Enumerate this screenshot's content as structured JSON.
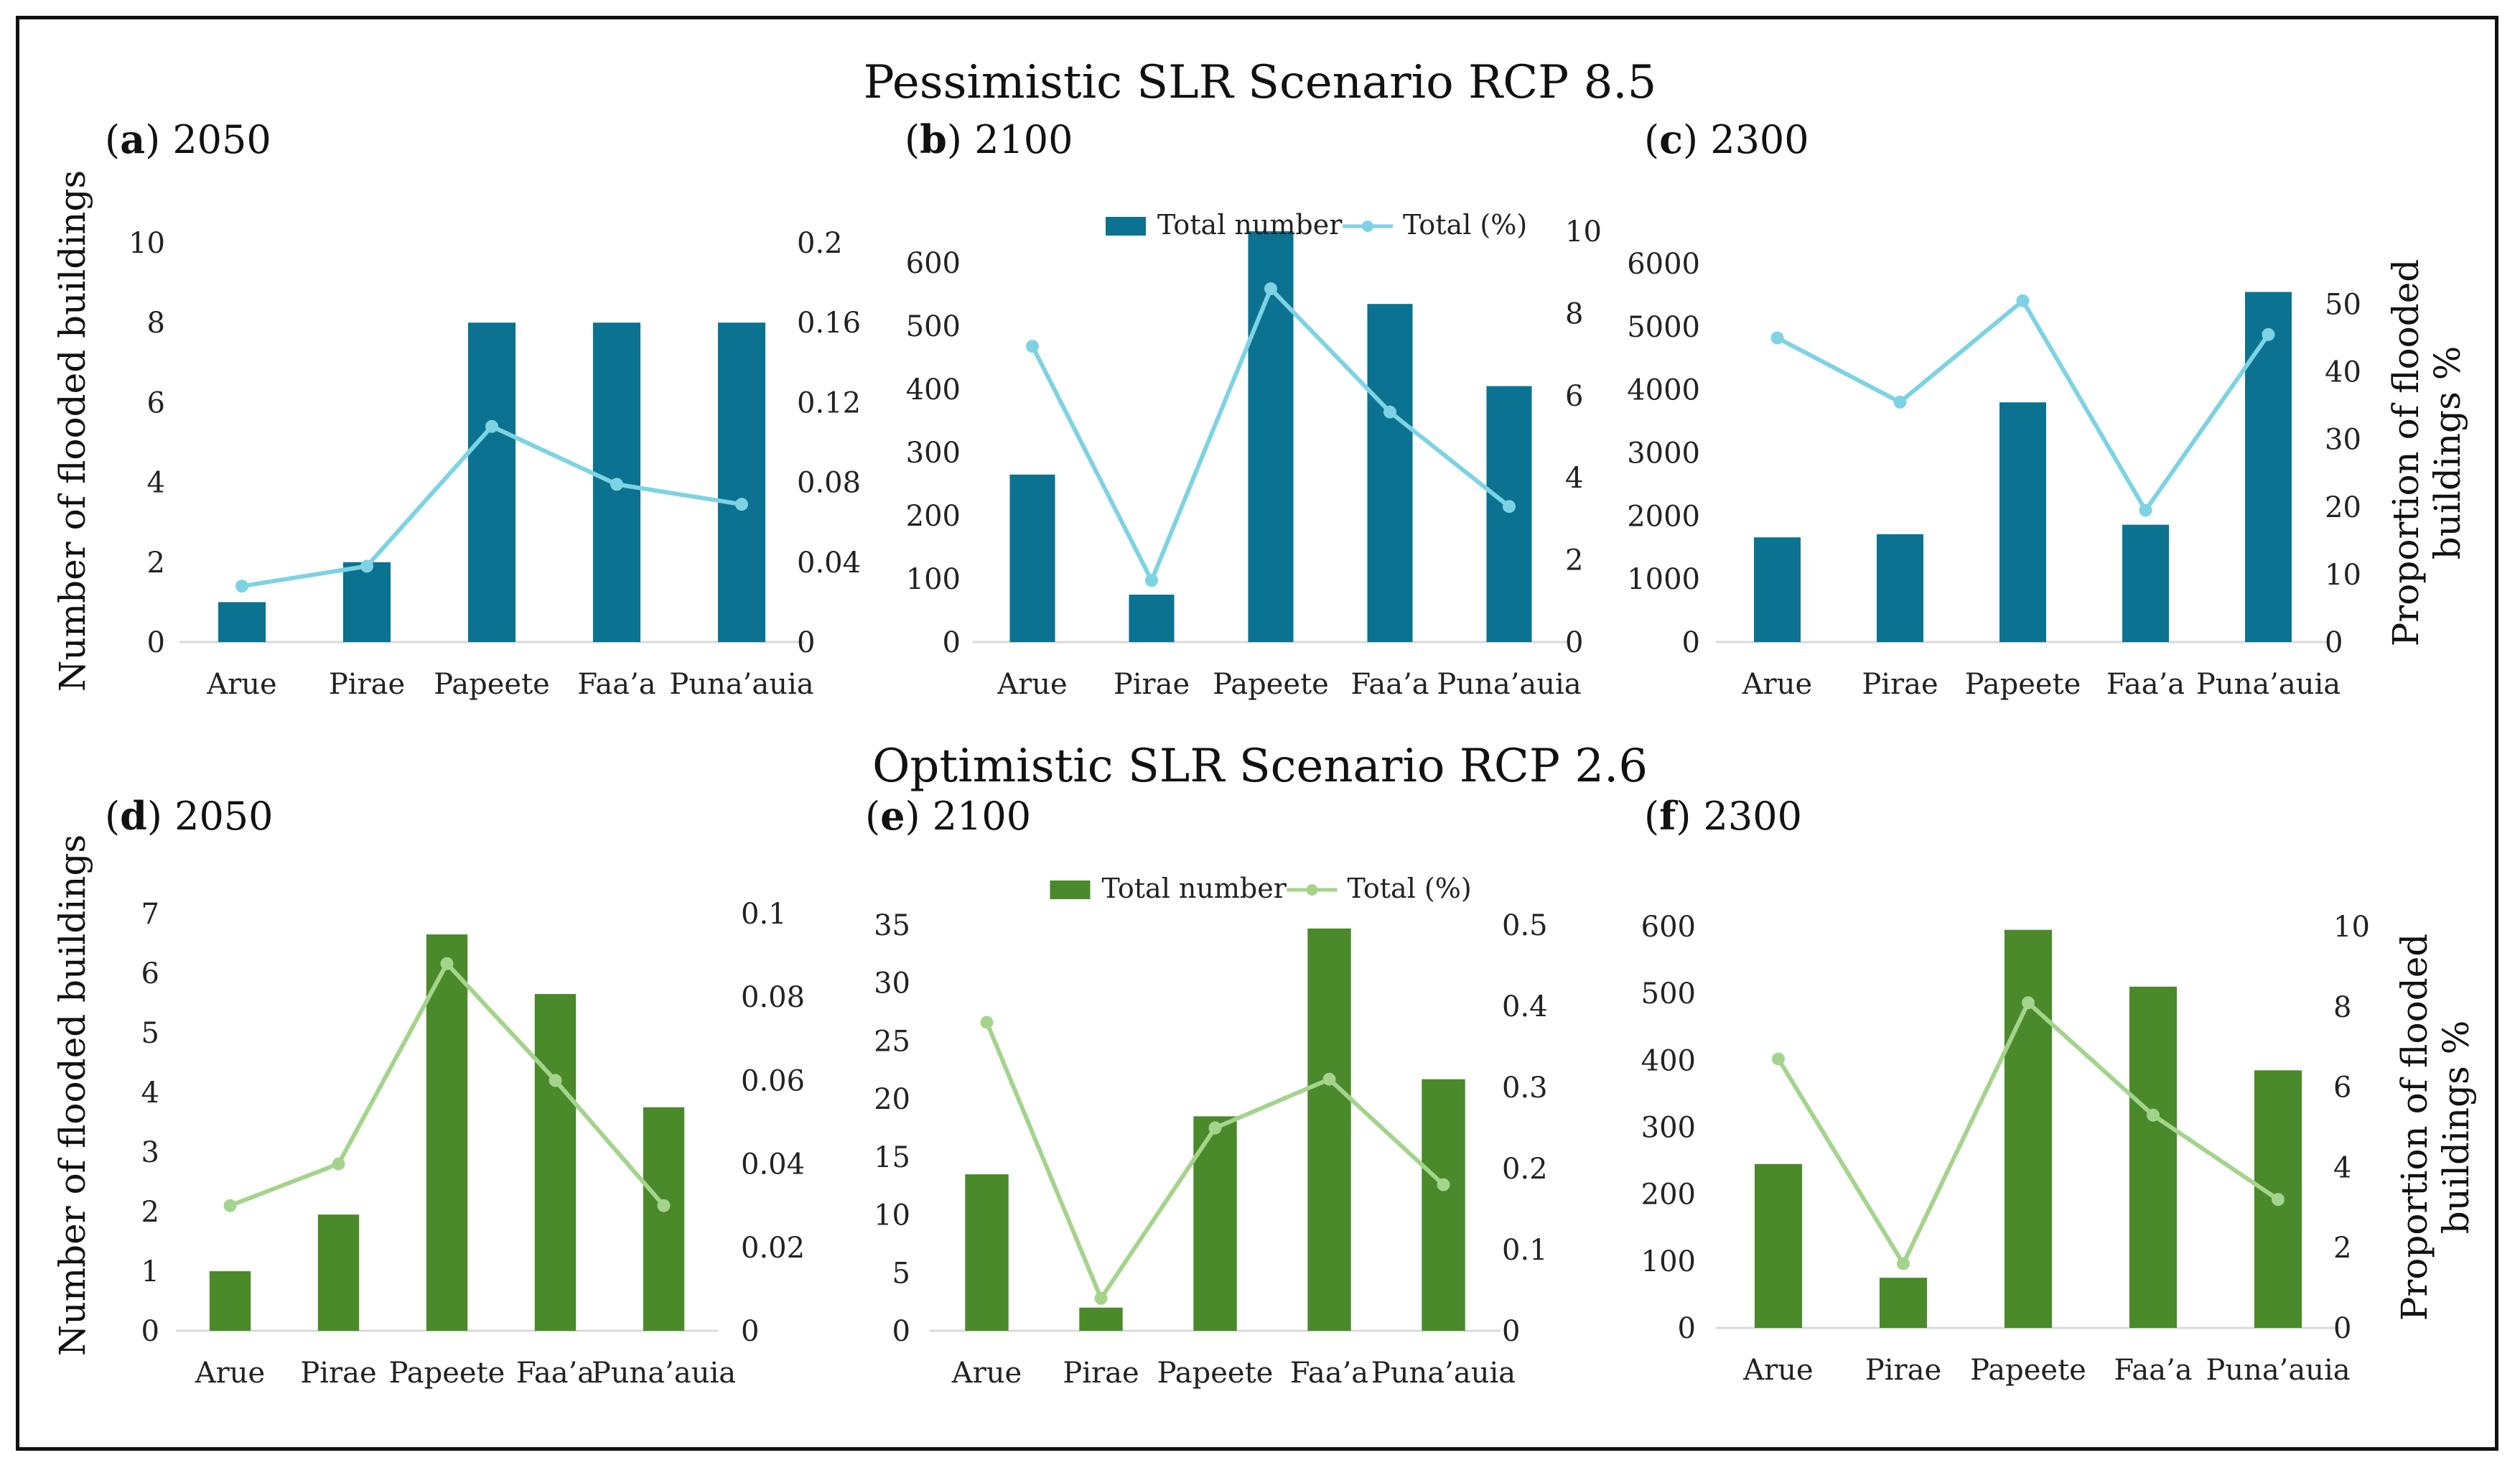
{
  "scenarios": {
    "pessimistic": "Pessimistic SLR Scenario RCP 8.5",
    "optimistic": "Optimistic SLR Scenario RCP 2.6"
  },
  "axis_titles": {
    "left": "Number of flooded buildings",
    "right_line1": "Proportion of flooded",
    "right_line2": "buildings %"
  },
  "legend": {
    "bar": "Total number",
    "line": "Total (%)"
  },
  "colors": {
    "pessimistic_bar": "#0b7391",
    "pessimistic_line": "#7dd3e3",
    "optimistic_bar": "#4a8a2a",
    "optimistic_line": "#a4d48c"
  },
  "chart_data": [
    {
      "id": "a",
      "label": "(a)",
      "year": "2050",
      "type": "bar+line",
      "scenario": "pessimistic",
      "categories": [
        "Arue",
        "Pirae",
        "Papeete",
        "Faa’a",
        "Puna’auia"
      ],
      "series": [
        {
          "name": "Total number",
          "axis": "left",
          "type": "bar",
          "values": [
            1,
            2,
            8,
            8,
            8
          ]
        },
        {
          "name": "Total (%)",
          "axis": "right",
          "type": "line",
          "values": [
            0.028,
            0.038,
            0.108,
            0.079,
            0.069
          ]
        }
      ],
      "ylim": [
        0,
        10
      ],
      "yticks": [
        0,
        2,
        4,
        6,
        8,
        10
      ],
      "yticklabels": [
        "0",
        "2",
        "4",
        "6",
        "8",
        "10"
      ],
      "y2lim": [
        0,
        0.2
      ],
      "y2ticks": [
        0,
        0.04,
        0.08,
        0.12,
        0.16,
        0.2
      ],
      "y2ticklabels": [
        "0",
        "0.04",
        "0.08",
        "0.12",
        "0.16",
        "0.2"
      ]
    },
    {
      "id": "b",
      "label": "(b)",
      "year": "2100",
      "type": "bar+line",
      "scenario": "pessimistic",
      "categories": [
        "Arue",
        "Pirae",
        "Papeete",
        "Faa’a",
        "Puna’auia"
      ],
      "series": [
        {
          "name": "Total number",
          "axis": "left",
          "type": "bar",
          "values": [
            265,
            75,
            650,
            535,
            405
          ]
        },
        {
          "name": "Total (%)",
          "axis": "right",
          "type": "line",
          "values": [
            7.2,
            1.5,
            8.6,
            5.6,
            3.3
          ]
        }
      ],
      "ylim": [
        0,
        650
      ],
      "yticks": [
        0,
        100,
        200,
        300,
        400,
        500,
        600
      ],
      "yticklabels": [
        "0",
        "100",
        "200",
        "300",
        "400",
        "500",
        "600"
      ],
      "y2lim": [
        0,
        10
      ],
      "y2ticks": [
        0,
        2,
        4,
        6,
        8,
        10
      ],
      "y2ticklabels": [
        "0",
        "2",
        "4",
        "6",
        "8",
        "10"
      ],
      "legend": true
    },
    {
      "id": "c",
      "label": "(c)",
      "year": "2300",
      "type": "bar+line",
      "scenario": "pessimistic",
      "categories": [
        "Arue",
        "Pirae",
        "Papeete",
        "Faa’a",
        "Puna’auia"
      ],
      "series": [
        {
          "name": "Total number",
          "axis": "left",
          "type": "bar",
          "values": [
            1660,
            1710,
            3800,
            1860,
            5550
          ]
        },
        {
          "name": "Total (%)",
          "axis": "right",
          "type": "line",
          "values": [
            45,
            35.5,
            50.5,
            19.5,
            45.5
          ]
        }
      ],
      "ylim": [
        0,
        6000
      ],
      "yticks": [
        0,
        1000,
        2000,
        3000,
        4000,
        5000,
        6000
      ],
      "yticklabels": [
        "0",
        "1000",
        "2000",
        "3000",
        "4000",
        "5000",
        "6000"
      ],
      "y2lim": [
        0,
        56
      ],
      "y2ticks": [
        0,
        10,
        20,
        30,
        40,
        50
      ],
      "y2ticklabels": [
        "0",
        "10",
        "20",
        "30",
        "40",
        "50"
      ],
      "right_title": true
    },
    {
      "id": "d",
      "label": "(d)",
      "year": "2050",
      "type": "bar+line",
      "scenario": "optimistic",
      "categories": [
        "Arue",
        "Pirae",
        "Papeete",
        "Faa’a",
        "Puna’auia"
      ],
      "series": [
        {
          "name": "Total number",
          "axis": "left",
          "type": "bar",
          "values": [
            1,
            1.95,
            6.65,
            5.65,
            3.75
          ]
        },
        {
          "name": "Total (%)",
          "axis": "right",
          "type": "line",
          "values": [
            0.03,
            0.04,
            0.088,
            0.06,
            0.03
          ]
        }
      ],
      "ylim": [
        0,
        7
      ],
      "yticks": [
        0,
        1,
        2,
        3,
        4,
        5,
        6,
        7
      ],
      "yticklabels": [
        "0",
        "1",
        "2",
        "3",
        "4",
        "5",
        "6",
        "7"
      ],
      "y2lim": [
        0,
        0.1
      ],
      "y2ticks": [
        0,
        0.02,
        0.04,
        0.06,
        0.08,
        0.1
      ],
      "y2ticklabels": [
        "0",
        "0.02",
        "0.04",
        "0.06",
        "0.08",
        "0.1"
      ]
    },
    {
      "id": "e",
      "label": "(e)",
      "year": "2100",
      "type": "bar+line",
      "scenario": "optimistic",
      "categories": [
        "Arue",
        "Pirae",
        "Papeete",
        "Faa’a",
        "Puna’auia"
      ],
      "series": [
        {
          "name": "Total number",
          "axis": "left",
          "type": "bar",
          "values": [
            13.5,
            2,
            18.5,
            34.7,
            21.7
          ]
        },
        {
          "name": "Total (%)",
          "axis": "right",
          "type": "line",
          "values": [
            0.38,
            0.04,
            0.25,
            0.31,
            0.18
          ]
        }
      ],
      "ylim": [
        0,
        35
      ],
      "yticks": [
        0,
        5,
        10,
        15,
        20,
        25,
        30,
        35
      ],
      "yticklabels": [
        "0",
        "5",
        "10",
        "15",
        "20",
        "25",
        "30",
        "35"
      ],
      "y2lim": [
        0,
        0.5
      ],
      "y2ticks": [
        0,
        0.1,
        0.2,
        0.3,
        0.4,
        0.5
      ],
      "y2ticklabels": [
        "0",
        "0.1",
        "0.2",
        "0.3",
        "0.4",
        "0.5"
      ],
      "legend": true
    },
    {
      "id": "f",
      "label": "(f)",
      "year": "2300",
      "type": "bar+line",
      "scenario": "optimistic",
      "categories": [
        "Arue",
        "Pirae",
        "Papeete",
        "Faa’a",
        "Puna’auia"
      ],
      "series": [
        {
          "name": "Total number",
          "axis": "left",
          "type": "bar",
          "values": [
            245,
            75,
            595,
            510,
            385
          ]
        },
        {
          "name": "Total (%)",
          "axis": "right",
          "type": "line",
          "values": [
            6.7,
            1.6,
            8.1,
            5.3,
            3.2
          ]
        }
      ],
      "ylim": [
        0,
        600
      ],
      "yticks": [
        0,
        100,
        200,
        300,
        400,
        500,
        600
      ],
      "yticklabels": [
        "0",
        "100",
        "200",
        "300",
        "400",
        "500",
        "600"
      ],
      "y2lim": [
        0,
        10
      ],
      "y2ticks": [
        0,
        2,
        4,
        6,
        8,
        10
      ],
      "y2ticklabels": [
        "0",
        "2",
        "4",
        "6",
        "8",
        "10"
      ],
      "right_title": true
    }
  ]
}
